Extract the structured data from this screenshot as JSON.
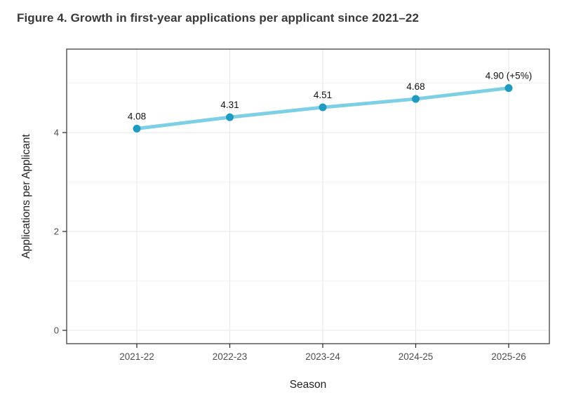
{
  "figure": {
    "title": "Figure 4. Growth in first-year applications per applicant since 2021–22"
  },
  "chart_data": {
    "type": "line",
    "categories": [
      "2021-22",
      "2022-23",
      "2023-24",
      "2024-25",
      "2025-26"
    ],
    "values": [
      4.08,
      4.31,
      4.51,
      4.68,
      4.9
    ],
    "point_labels": [
      "4.08",
      "4.31",
      "4.51",
      "4.68",
      "4.90 (+5%)"
    ],
    "title": "Figure 4. Growth in first-year applications per applicant since 2021–22",
    "xlabel": "Season",
    "ylabel": "Applications per Applicant",
    "yticks": [
      0,
      2,
      4
    ],
    "ylim": [
      -0.45,
      5.69
    ],
    "grid": {
      "major": [
        0,
        2,
        4
      ],
      "minor": [
        1,
        3,
        5
      ],
      "vertical": true
    },
    "legend": "none",
    "colors": {
      "line": "#7DCFE6",
      "point": "#1F9BC2",
      "grid_major": "#e7e7e7",
      "grid_minor": "#f3f3f3",
      "panel_border": "#4d4d4d",
      "tick_text": "#4d4d4d",
      "axis_title_text": "#1f1f1f",
      "data_label_text": "#111111"
    }
  }
}
